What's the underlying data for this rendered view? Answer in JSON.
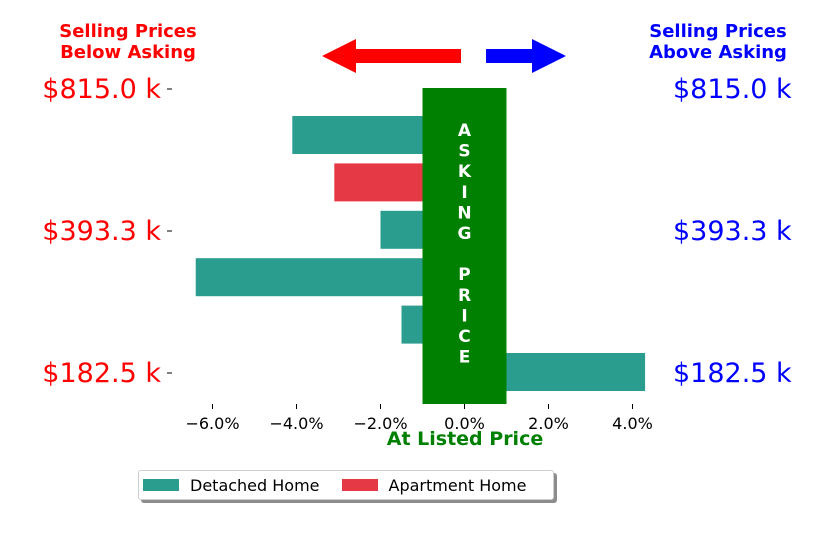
{
  "header": {
    "left_line1": "Selling Prices",
    "left_line2": "Below Asking",
    "right_line1": "Selling Prices",
    "right_line2": "Above Asking"
  },
  "colors": {
    "left_text": "#ff0000",
    "right_text": "#0000ff",
    "band": "#008000",
    "detached": "#2a9d8f",
    "apartment": "#e63946",
    "arrow_left": "#ff0000",
    "arrow_right": "#0000ff"
  },
  "band_label": [
    "A",
    "S",
    "K",
    "I",
    "N",
    "G",
    "",
    "P",
    "R",
    "I",
    "C",
    "E"
  ],
  "legend": {
    "detached_label": "Detached Home",
    "apartment_label": "Apartment Home"
  },
  "chart_data": {
    "type": "bar",
    "orientation": "horizontal",
    "xlabel": "At Listed Price",
    "xlim": [
      -7.3,
      4.6
    ],
    "xticks": [
      -6.0,
      -4.0,
      -2.0,
      0.0,
      2.0,
      4.0
    ],
    "xtick_labels": [
      "−6.0%",
      "−4.0%",
      "−2.0%",
      "0.0%",
      "2.0%",
      "4.0%"
    ],
    "ytick_labels": [
      "$815.0 k",
      "$393.3 k",
      "$182.5 k"
    ],
    "band_range": [
      -1.0,
      1.0
    ],
    "bars": [
      {
        "type": "Detached Home",
        "start": -4.1,
        "end": -1.0
      },
      {
        "type": "Apartment Home",
        "start": -3.1,
        "end": -1.0
      },
      {
        "type": "Detached Home",
        "start": -2.0,
        "end": -1.0
      },
      {
        "type": "Detached Home",
        "start": -6.4,
        "end": -1.0
      },
      {
        "type": "Detached Home",
        "start": -1.5,
        "end": -1.0
      },
      {
        "type": "Detached Home",
        "start": 1.0,
        "end": 4.3
      }
    ]
  }
}
